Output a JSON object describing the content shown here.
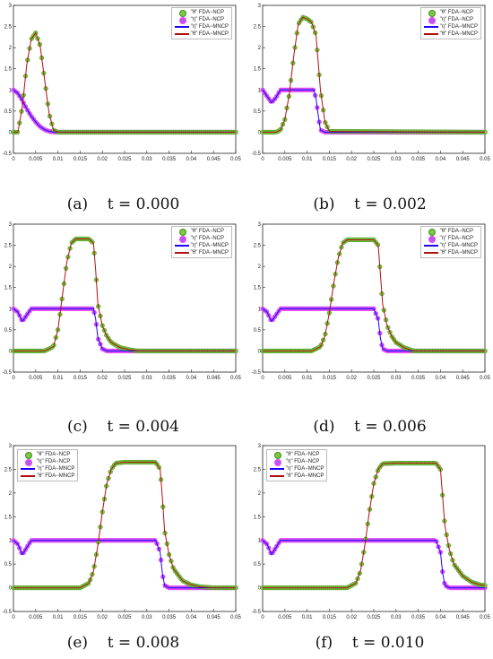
{
  "colors": {
    "theta_markers": "#7ac943",
    "theta_marker_edge": "#3f8f1c",
    "eta_markers": "#b05bea",
    "eta_marker_edge": "#ff40ff",
    "eta_line": "#1f00ff",
    "theta_line": "#b21010"
  },
  "legend": {
    "theta_ncp": "\"θ\" FDA−NCP",
    "eta_ncp": "\"η\" FDA−NCP",
    "eta_mncp": "\"η\" FDA−MNCP",
    "theta_mncp": "\"θ\" FDA−MNCP"
  },
  "chart_data": [
    {
      "type": "line",
      "panel": "(a)",
      "t_label": "t = 0.000",
      "time": 0.0,
      "xlim": [
        0,
        0.05
      ],
      "ylim": [
        -0.5,
        3
      ],
      "xticks": [
        "0",
        "0.005",
        "0.01",
        "0.015",
        "0.02",
        "0.025",
        "0.03",
        "0.035",
        "0.04",
        "0.045",
        "0.05"
      ],
      "yticks": [
        "-0.5",
        "0",
        "0.5",
        "1",
        "1.5",
        "2",
        "2.5",
        "3"
      ],
      "legend_position": "top-right",
      "series": [
        {
          "name": "\"θ\" FDA−NCP",
          "x": [
            0,
            0.001,
            0.002,
            0.003,
            0.004,
            0.005,
            0.006,
            0.007,
            0.008,
            0.009,
            0.01,
            0.05
          ],
          "y": [
            0,
            0,
            0.6,
            1.6,
            2.2,
            2.35,
            2.05,
            1.25,
            0.45,
            0.05,
            0,
            0
          ]
        },
        {
          "name": "\"η\" FDA−NCP",
          "x": [
            0,
            0.001,
            0.002,
            0.003,
            0.004,
            0.005,
            0.006,
            0.007,
            0.008,
            0.009,
            0.01,
            0.05
          ],
          "y": [
            1,
            0.92,
            0.75,
            0.55,
            0.38,
            0.24,
            0.13,
            0.06,
            0.02,
            0.005,
            0,
            0
          ]
        }
      ]
    },
    {
      "type": "line",
      "panel": "(b)",
      "t_label": "t = 0.002",
      "time": 0.002,
      "xlim": [
        0,
        0.05
      ],
      "ylim": [
        -0.5,
        3
      ],
      "xticks": [
        "0",
        "0.005",
        "0.01",
        "0.015",
        "0.02",
        "0.025",
        "0.03",
        "0.035",
        "0.04",
        "0.045",
        "0.05"
      ],
      "yticks": [
        "-0.5",
        "0",
        "0.5",
        "1",
        "1.5",
        "2",
        "2.5",
        "3"
      ],
      "legend_position": "top-right",
      "series": [
        {
          "name": "\"θ\" FDA−NCP",
          "x": [
            0,
            0.003,
            0.004,
            0.005,
            0.006,
            0.007,
            0.008,
            0.009,
            0.01,
            0.011,
            0.012,
            0.013,
            0.014,
            0.015,
            0.05
          ],
          "y": [
            0,
            0,
            0.05,
            0.3,
            0.9,
            1.8,
            2.55,
            2.72,
            2.68,
            2.6,
            2.3,
            1.0,
            0.25,
            0.02,
            0
          ]
        },
        {
          "name": "\"η\" FDA−NCP",
          "x": [
            0,
            0.001,
            0.002,
            0.003,
            0.004,
            0.0055,
            0.0065,
            0.01,
            0.0115,
            0.012,
            0.0125,
            0.013,
            0.014,
            0.05
          ],
          "y": [
            1,
            0.85,
            0.7,
            0.82,
            1.0,
            1.0,
            1.0,
            1.0,
            1.0,
            0.8,
            0.4,
            0.05,
            0,
            0
          ]
        }
      ]
    },
    {
      "type": "line",
      "panel": "(c)",
      "t_label": "t = 0.004",
      "time": 0.004,
      "xlim": [
        0,
        0.05
      ],
      "ylim": [
        -0.5,
        3
      ],
      "xticks": [
        "0",
        "0.005",
        "0.01",
        "0.015",
        "0.02",
        "0.025",
        "0.03",
        "0.035",
        "0.04",
        "0.045",
        "0.05"
      ],
      "yticks": [
        "-0.5",
        "0",
        "0.5",
        "1",
        "1.5",
        "2",
        "2.5",
        "3"
      ],
      "legend_position": "top-right",
      "series": [
        {
          "name": "\"θ\" FDA−NCP",
          "x": [
            0,
            0.007,
            0.009,
            0.01,
            0.011,
            0.012,
            0.013,
            0.014,
            0.015,
            0.017,
            0.018,
            0.0185,
            0.019,
            0.02,
            0.021,
            0.022,
            0.024,
            0.026,
            0.028,
            0.05
          ],
          "y": [
            0,
            0,
            0.1,
            0.5,
            1.3,
            2.1,
            2.55,
            2.65,
            2.65,
            2.65,
            2.55,
            1.9,
            1.1,
            0.6,
            0.35,
            0.2,
            0.08,
            0.03,
            0,
            0
          ]
        },
        {
          "name": "\"η\" FDA−NCP",
          "x": [
            0,
            0.001,
            0.002,
            0.003,
            0.004,
            0.006,
            0.01,
            0.015,
            0.018,
            0.0185,
            0.019,
            0.02,
            0.021,
            0.05
          ],
          "y": [
            1,
            0.92,
            0.7,
            0.85,
            1.0,
            1.0,
            1.0,
            1.0,
            1.0,
            0.75,
            0.3,
            0.05,
            0,
            0
          ]
        }
      ]
    },
    {
      "type": "line",
      "panel": "(d)",
      "t_label": "t = 0.006",
      "time": 0.006,
      "xlim": [
        0,
        0.05
      ],
      "ylim": [
        -0.5,
        3
      ],
      "xticks": [
        "0",
        "0.005",
        "0.01",
        "0.015",
        "0.02",
        "0.025",
        "0.03",
        "0.035",
        "0.04",
        "0.045",
        "0.05"
      ],
      "yticks": [
        "-0.5",
        "0",
        "0.5",
        "1",
        "1.5",
        "2",
        "2.5",
        "3"
      ],
      "legend_position": "top-right",
      "series": [
        {
          "name": "\"θ\" FDA−NCP",
          "x": [
            0,
            0.011,
            0.013,
            0.014,
            0.015,
            0.016,
            0.017,
            0.018,
            0.019,
            0.02,
            0.025,
            0.026,
            0.0265,
            0.027,
            0.028,
            0.029,
            0.03,
            0.032,
            0.034,
            0.05
          ],
          "y": [
            0,
            0,
            0.1,
            0.35,
            0.9,
            1.6,
            2.2,
            2.55,
            2.63,
            2.63,
            2.63,
            2.5,
            1.8,
            1.1,
            0.6,
            0.35,
            0.2,
            0.07,
            0,
            0
          ]
        },
        {
          "name": "\"η\" FDA−NCP",
          "x": [
            0,
            0.001,
            0.002,
            0.003,
            0.004,
            0.006,
            0.01,
            0.02,
            0.025,
            0.026,
            0.0265,
            0.027,
            0.028,
            0.05
          ],
          "y": [
            1,
            0.92,
            0.7,
            0.85,
            1.0,
            1.0,
            1.0,
            1.0,
            1.0,
            0.75,
            0.3,
            0.05,
            0,
            0
          ]
        }
      ]
    },
    {
      "type": "line",
      "panel": "(e)",
      "t_label": "t = 0.008",
      "time": 0.008,
      "xlim": [
        0,
        0.05
      ],
      "ylim": [
        -0.5,
        3
      ],
      "xticks": [
        "0",
        "0.005",
        "0.01",
        "0.015",
        "0.02",
        "0.025",
        "0.03",
        "0.035",
        "0.04",
        "0.045",
        "0.05"
      ],
      "yticks": [
        "-0.5",
        "0",
        "0.5",
        "1",
        "1.5",
        "2",
        "2.5",
        "3"
      ],
      "legend_position": "top-left",
      "series": [
        {
          "name": "\"θ\" FDA−NCP",
          "x": [
            0,
            0.015,
            0.017,
            0.018,
            0.019,
            0.02,
            0.021,
            0.022,
            0.023,
            0.025,
            0.03,
            0.032,
            0.033,
            0.0335,
            0.034,
            0.035,
            0.036,
            0.038,
            0.04,
            0.042,
            0.045,
            0.05
          ],
          "y": [
            0,
            0,
            0.1,
            0.35,
            0.9,
            1.6,
            2.2,
            2.5,
            2.63,
            2.65,
            2.65,
            2.65,
            2.5,
            1.9,
            1.2,
            0.7,
            0.4,
            0.15,
            0.06,
            0.02,
            0,
            0
          ]
        },
        {
          "name": "\"η\" FDA−NCP",
          "x": [
            0,
            0.001,
            0.002,
            0.003,
            0.004,
            0.006,
            0.01,
            0.02,
            0.03,
            0.032,
            0.033,
            0.0335,
            0.034,
            0.035,
            0.05
          ],
          "y": [
            1,
            0.92,
            0.7,
            0.85,
            1.0,
            1.0,
            1.0,
            1.0,
            1.0,
            1.0,
            0.75,
            0.3,
            0.05,
            0,
            0
          ]
        }
      ]
    },
    {
      "type": "line",
      "panel": "(f)",
      "t_label": "t = 0.010",
      "time": 0.01,
      "xlim": [
        0,
        0.05
      ],
      "ylim": [
        -0.5,
        3
      ],
      "xticks": [
        "0",
        "0.005",
        "0.01",
        "0.015",
        "0.02",
        "0.025",
        "0.03",
        "0.035",
        "0.04",
        "0.045",
        "0.05"
      ],
      "yticks": [
        "-0.5",
        "0",
        "0.5",
        "1",
        "1.5",
        "2",
        "2.5",
        "3"
      ],
      "legend_position": "top-left",
      "series": [
        {
          "name": "\"θ\" FDA−NCP",
          "x": [
            0,
            0.019,
            0.021,
            0.022,
            0.023,
            0.024,
            0.025,
            0.026,
            0.027,
            0.03,
            0.035,
            0.039,
            0.04,
            0.0405,
            0.041,
            0.042,
            0.043,
            0.045,
            0.047,
            0.049,
            0.05
          ],
          "y": [
            0,
            0,
            0.1,
            0.35,
            0.9,
            1.6,
            2.2,
            2.5,
            2.62,
            2.63,
            2.63,
            2.63,
            2.5,
            1.9,
            1.3,
            0.8,
            0.5,
            0.25,
            0.12,
            0.06,
            0.05
          ]
        },
        {
          "name": "\"η\" FDA−NCP",
          "x": [
            0,
            0.001,
            0.002,
            0.003,
            0.004,
            0.006,
            0.01,
            0.02,
            0.03,
            0.039,
            0.04,
            0.0405,
            0.041,
            0.042,
            0.05
          ],
          "y": [
            1,
            0.92,
            0.7,
            0.85,
            1.0,
            1.0,
            1.0,
            1.0,
            1.0,
            1.0,
            0.75,
            0.3,
            0.05,
            0,
            0
          ]
        }
      ]
    }
  ]
}
